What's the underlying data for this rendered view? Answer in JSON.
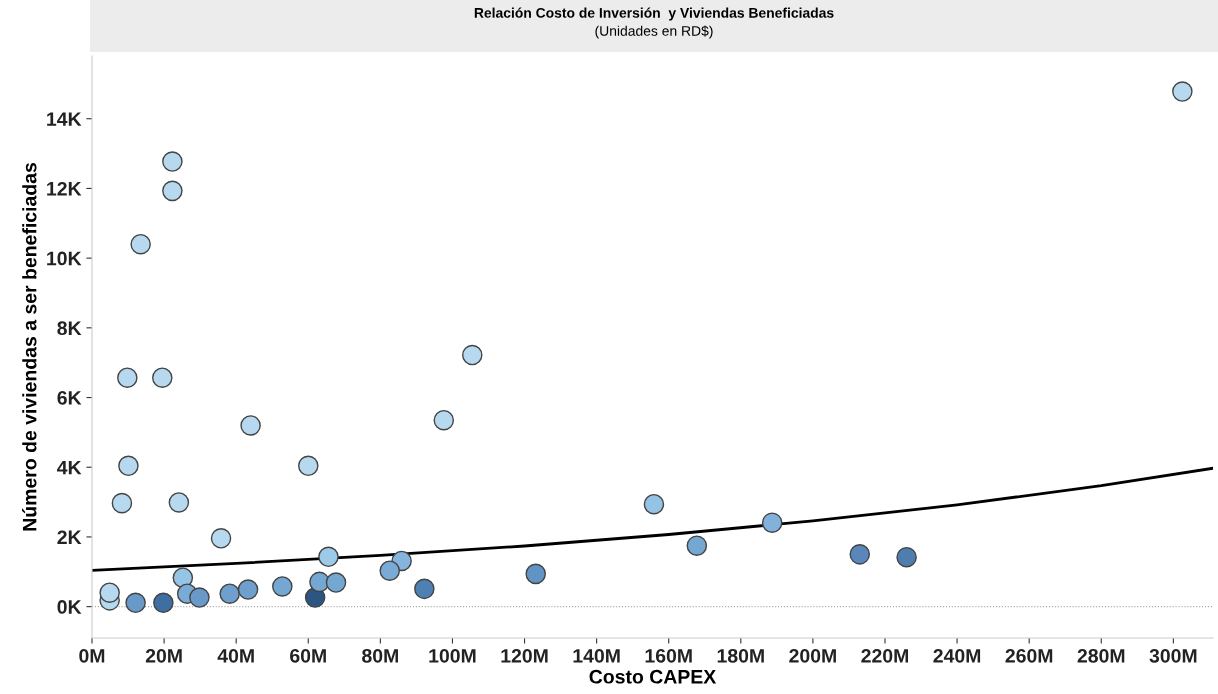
{
  "chart_data": {
    "type": "scatter",
    "title": "Relación Costo de Inversión  y Viviendas Beneficiadas",
    "subtitle": "(Unidades en RD$)",
    "xlabel": "Costo CAPEX",
    "ylabel": "Número de viviendas a ser beneficiadas",
    "xlim": [
      0,
      311
    ],
    "ylim": [
      -0.9,
      15.8
    ],
    "xticks": [
      {
        "value": 0,
        "label": "0M"
      },
      {
        "value": 20,
        "label": "20M"
      },
      {
        "value": 40,
        "label": "40M"
      },
      {
        "value": 60,
        "label": "60M"
      },
      {
        "value": 80,
        "label": "80M"
      },
      {
        "value": 100,
        "label": "100M"
      },
      {
        "value": 120,
        "label": "120M"
      },
      {
        "value": 140,
        "label": "140M"
      },
      {
        "value": 160,
        "label": "160M"
      },
      {
        "value": 180,
        "label": "180M"
      },
      {
        "value": 200,
        "label": "200M"
      },
      {
        "value": 220,
        "label": "220M"
      },
      {
        "value": 240,
        "label": "240M"
      },
      {
        "value": 260,
        "label": "260M"
      },
      {
        "value": 280,
        "label": "280M"
      },
      {
        "value": 300,
        "label": "300M"
      }
    ],
    "yticks": [
      {
        "value": 0,
        "label": "0K"
      },
      {
        "value": 2,
        "label": "2K"
      },
      {
        "value": 4,
        "label": "4K"
      },
      {
        "value": 6,
        "label": "6K"
      },
      {
        "value": 8,
        "label": "8K"
      },
      {
        "value": 10,
        "label": "10K"
      },
      {
        "value": 12,
        "label": "12K"
      },
      {
        "value": 14,
        "label": "14K"
      }
    ],
    "grid": false,
    "legend": false,
    "ref_lines": [
      {
        "axis": "y",
        "value": 0,
        "color": "#aaaaaa",
        "line_style": "dotted"
      }
    ],
    "series": [
      {
        "marker": "circle",
        "x": [
          22.3,
          22.3,
          13.5,
          9.8,
          19.5,
          105.5,
          97.6,
          44.0,
          10.1,
          60.0,
          8.3,
          24.1,
          35.8,
          65.6,
          85.9,
          82.6,
          25.2,
          4.9,
          4.9,
          12.1,
          19.8,
          26.4,
          29.8,
          38.2,
          43.3,
          52.8,
          61.9,
          63.1,
          67.7,
          92.2,
          123.1,
          155.9,
          167.8,
          188.7,
          213.0,
          226.0,
          302.5
        ],
        "values": [
          12.77,
          11.93,
          10.4,
          6.57,
          6.57,
          7.22,
          5.35,
          5.2,
          4.04,
          4.04,
          2.97,
          2.99,
          1.96,
          1.43,
          1.31,
          1.03,
          0.83,
          0.18,
          0.4,
          0.11,
          0.11,
          0.37,
          0.26,
          0.37,
          0.49,
          0.58,
          0.26,
          0.71,
          0.69,
          0.51,
          0.94,
          2.94,
          1.75,
          2.41,
          1.5,
          1.42,
          14.78
        ],
        "colors": [
          "#b7d9f0",
          "#b7d9f0",
          "#b7d9f0",
          "#b7d9f0",
          "#b7d9f0",
          "#b7d9f0",
          "#b7d9f0",
          "#b7d9f0",
          "#b7d9f0",
          "#b7d9f0",
          "#b7d9f0",
          "#b7d9f0",
          "#b7d9f0",
          "#9ccbea",
          "#85b4dc",
          "#7aabd6",
          "#96c4e4",
          "#b7d9f0",
          "#b7d9f0",
          "#6899c8",
          "#3f6ea3",
          "#7aabd6",
          "#6899c8",
          "#6fa0cd",
          "#6fa0cd",
          "#75a7d3",
          "#2b5582",
          "#75a7d3",
          "#75a7d3",
          "#4f80b3",
          "#6194c5",
          "#94c3e6",
          "#75a7d3",
          "#82b2dc",
          "#5987ba",
          "#4e7dae",
          "#b7d9f0"
        ]
      },
      {
        "type": "line",
        "color": "#000000",
        "x": [
          0,
          40,
          80,
          120,
          160,
          200,
          240,
          280,
          311
        ],
        "values": [
          1.04,
          1.24,
          1.47,
          1.74,
          2.07,
          2.46,
          2.92,
          3.47,
          3.97
        ]
      }
    ]
  }
}
